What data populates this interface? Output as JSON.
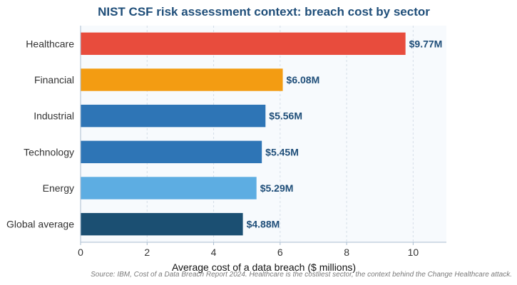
{
  "chart_data": {
    "type": "bar",
    "orientation": "horizontal",
    "title": "NIST CSF risk assessment context: breach cost by sector",
    "xlabel": "Average cost of a data breach ($ millions)",
    "ylabel": "",
    "categories": [
      "Healthcare",
      "Financial",
      "Industrial",
      "Technology",
      "Energy",
      "Global average"
    ],
    "values": [
      9.77,
      6.08,
      5.56,
      5.45,
      5.29,
      4.88
    ],
    "data_labels": [
      "$9.77M",
      "$6.08M",
      "$5.56M",
      "$5.45M",
      "$5.29M",
      "$4.88M"
    ],
    "bar_colors": [
      "#e84c3d",
      "#f39c12",
      "#2e75b6",
      "#2e75b6",
      "#5dade2",
      "#1b4f72"
    ],
    "xlim": [
      0,
      11
    ],
    "xticks": [
      0,
      2,
      4,
      6,
      8,
      10
    ],
    "grid": "vertical dashed",
    "legend": "none",
    "source": "Source: IBM, Cost of a Data Breach Report 2024. Healthcare is the costliest sector, the context behind the Change Healthcare attack."
  },
  "colors": {
    "title": "#1f4e79",
    "data_label": "#1f4e79",
    "plot_background": "#f7fafd",
    "axis": "#a9bcd0",
    "grid": "#d5dee8"
  }
}
